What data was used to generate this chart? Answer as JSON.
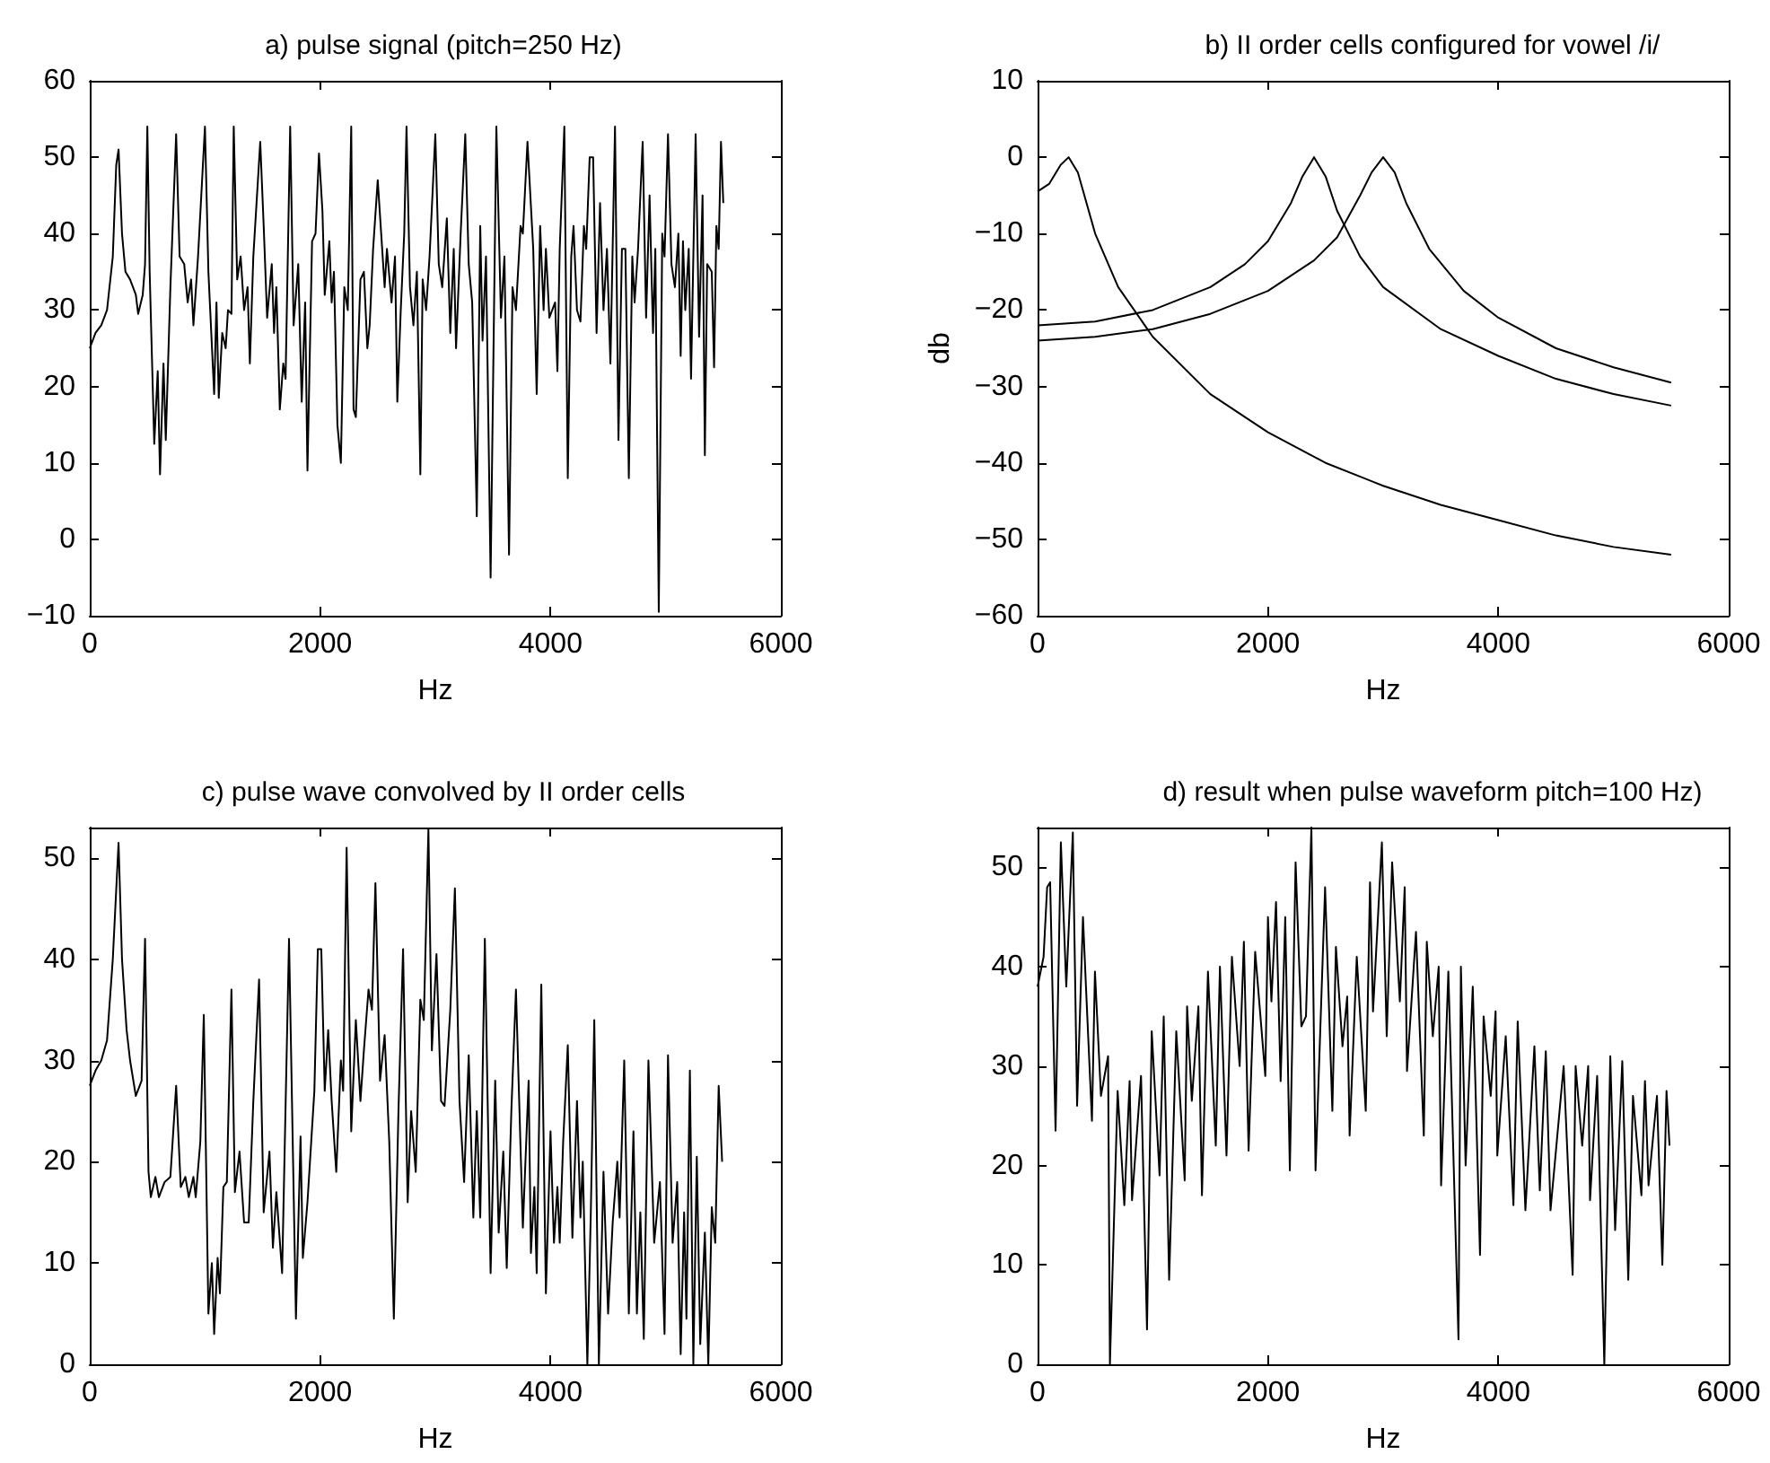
{
  "chart_data": [
    {
      "type": "line",
      "title": "a) pulse signal (pitch=250 Hz)",
      "xlabel": "Hz",
      "xlim": [
        0,
        6000
      ],
      "xticks": [
        0,
        2000,
        4000,
        6000
      ],
      "ylim": [
        -10,
        60
      ],
      "yticks": [
        -10,
        0,
        10,
        20,
        30,
        40,
        50,
        60
      ],
      "series": [
        {
          "color": "#000000",
          "x": [
            0,
            50,
            100,
            150,
            200,
            230,
            250,
            280,
            310,
            350,
            400,
            420,
            460,
            480,
            500,
            520,
            560,
            590,
            610,
            640,
            660,
            700,
            750,
            780,
            820,
            850,
            880,
            900,
            940,
            1000,
            1030,
            1080,
            1100,
            1120,
            1150,
            1180,
            1200,
            1230,
            1250,
            1280,
            1310,
            1340,
            1370,
            1390,
            1420,
            1480,
            1510,
            1540,
            1580,
            1600,
            1620,
            1650,
            1680,
            1700,
            1740,
            1770,
            1810,
            1840,
            1870,
            1890,
            1930,
            1960,
            1990,
            2020,
            2040,
            2080,
            2100,
            2120,
            2150,
            2180,
            2210,
            2240,
            2270,
            2290,
            2310,
            2350,
            2380,
            2410,
            2430,
            2460,
            2500,
            2530,
            2560,
            2580,
            2620,
            2650,
            2670,
            2700,
            2730,
            2750,
            2780,
            2810,
            2840,
            2870,
            2890,
            2920,
            2950,
            3000,
            3030,
            3060,
            3100,
            3130,
            3160,
            3180,
            3220,
            3260,
            3290,
            3320,
            3360,
            3390,
            3410,
            3440,
            3480,
            3530,
            3570,
            3600,
            3640,
            3670,
            3700,
            3740,
            3760,
            3800,
            3850,
            3880,
            3910,
            3940,
            3960,
            3990,
            4040,
            4060,
            4080,
            4120,
            4150,
            4180,
            4200,
            4230,
            4260,
            4290,
            4310,
            4340,
            4370,
            4400,
            4430,
            4460,
            4490,
            4520,
            4560,
            4590,
            4620,
            4650,
            4680,
            4710,
            4730,
            4760,
            4800,
            4830,
            4860,
            4890,
            4910,
            4940,
            4970,
            4990,
            5020,
            5050,
            5080,
            5110,
            5130,
            5150,
            5170,
            5200,
            5220,
            5260,
            5290,
            5320,
            5340,
            5360,
            5400,
            5420,
            5440,
            5460,
            5480,
            5500
          ],
          "values": [
            25,
            27,
            28,
            30,
            37,
            49,
            51,
            40,
            35,
            34,
            32,
            29.5,
            32,
            36,
            54,
            35,
            12.5,
            22,
            8.5,
            23,
            13,
            33,
            53,
            37,
            36,
            31,
            34,
            28,
            37,
            54,
            35,
            19,
            31,
            18.5,
            27,
            25,
            30,
            29.5,
            54,
            34,
            37,
            30,
            33,
            23,
            37,
            52,
            41,
            29,
            36,
            27,
            33,
            17,
            23,
            21,
            54,
            28,
            36,
            18,
            31,
            9,
            39,
            40,
            50.5,
            43,
            32,
            39,
            31,
            35,
            15,
            10,
            33,
            30,
            54,
            17,
            16,
            34,
            35,
            25,
            28,
            38,
            47,
            40,
            33,
            38,
            31,
            37,
            18,
            30,
            40,
            54,
            33,
            28,
            35,
            8.5,
            34,
            30,
            37,
            53,
            36,
            33,
            42,
            27,
            38,
            25,
            40,
            53,
            36,
            31,
            3,
            41,
            26,
            37,
            -5,
            54,
            29,
            37,
            -2,
            33,
            30,
            41,
            40,
            52,
            38,
            19,
            41,
            30,
            38,
            29,
            31,
            22,
            38,
            54,
            8,
            37,
            41,
            30,
            28.5,
            41,
            38,
            50,
            50,
            27,
            44,
            30,
            38,
            23,
            54,
            13,
            38,
            38,
            8,
            37,
            31,
            38,
            52,
            29,
            45,
            27,
            38,
            -9.5,
            40,
            37,
            53,
            36,
            33,
            40,
            24,
            39,
            30,
            38,
            21,
            53,
            26.5,
            45,
            11,
            36,
            35,
            22.5,
            41,
            38,
            52,
            44
          ]
        }
      ]
    },
    {
      "type": "line",
      "title": "b) II order cells configured for vowel /i/",
      "xlabel": "Hz",
      "ylabel": "db",
      "xlim": [
        0,
        6000
      ],
      "xticks": [
        0,
        2000,
        4000,
        6000
      ],
      "ylim": [
        -60,
        10
      ],
      "yticks": [
        -60,
        -50,
        -40,
        -30,
        -20,
        -10,
        0,
        10
      ],
      "series": [
        {
          "color": "#000000",
          "x": [
            0,
            100,
            200,
            270,
            350,
            500,
            700,
            1000,
            1500,
            2000,
            2500,
            3000,
            3500,
            4000,
            4500,
            5000,
            5500
          ],
          "values": [
            -4.5,
            -3.5,
            -1,
            0,
            -2,
            -10,
            -17,
            -23.5,
            -31,
            -36,
            -40,
            -43,
            -45.5,
            -47.5,
            -49.5,
            -51,
            -52
          ]
        },
        {
          "color": "#000000",
          "x": [
            0,
            500,
            1000,
            1500,
            1800,
            2000,
            2200,
            2300,
            2400,
            2500,
            2600,
            2800,
            3000,
            3500,
            4000,
            4500,
            5000,
            5500
          ],
          "values": [
            -22,
            -21.5,
            -20,
            -17,
            -14,
            -11,
            -6,
            -2.5,
            0,
            -2.5,
            -7,
            -13,
            -17,
            -22.5,
            -26,
            -29,
            -31,
            -32.5
          ]
        },
        {
          "color": "#000000",
          "x": [
            0,
            500,
            1000,
            1500,
            2000,
            2400,
            2600,
            2800,
            2900,
            3000,
            3100,
            3200,
            3400,
            3700,
            4000,
            4500,
            5000,
            5500
          ],
          "values": [
            -24,
            -23.5,
            -22.5,
            -20.5,
            -17.5,
            -13.5,
            -10.5,
            -5,
            -2,
            0,
            -2,
            -6,
            -12,
            -17.5,
            -21,
            -25,
            -27.5,
            -29.5
          ]
        }
      ]
    },
    {
      "type": "line",
      "title": "c) pulse wave convolved by II order cells",
      "xlabel": "Hz",
      "xlim": [
        0,
        6000
      ],
      "xticks": [
        0,
        2000,
        4000,
        6000
      ],
      "ylim": [
        0,
        53
      ],
      "yticks": [
        0,
        10,
        20,
        30,
        40,
        50
      ],
      "series": [
        {
          "color": "#000000",
          "x": [
            0,
            50,
            100,
            150,
            200,
            250,
            280,
            320,
            350,
            400,
            450,
            480,
            510,
            530,
            570,
            600,
            650,
            700,
            750,
            790,
            830,
            860,
            900,
            920,
            960,
            990,
            1030,
            1060,
            1080,
            1110,
            1130,
            1160,
            1190,
            1230,
            1260,
            1300,
            1340,
            1380,
            1420,
            1470,
            1510,
            1560,
            1590,
            1620,
            1670,
            1730,
            1790,
            1830,
            1850,
            1890,
            1950,
            1980,
            2010,
            2040,
            2070,
            2100,
            2140,
            2180,
            2200,
            2230,
            2270,
            2310,
            2350,
            2380,
            2420,
            2450,
            2480,
            2520,
            2560,
            2600,
            2640,
            2680,
            2720,
            2760,
            2790,
            2830,
            2870,
            2900,
            2940,
            2970,
            3010,
            3050,
            3080,
            3130,
            3170,
            3210,
            3250,
            3290,
            3330,
            3360,
            3390,
            3430,
            3480,
            3520,
            3550,
            3590,
            3620,
            3660,
            3700,
            3760,
            3810,
            3830,
            3860,
            3880,
            3920,
            3960,
            4000,
            4030,
            4060,
            4080,
            4110,
            4150,
            4190,
            4230,
            4260,
            4280,
            4320,
            4350,
            4380,
            4420,
            4460,
            4500,
            4540,
            4580,
            4600,
            4640,
            4680,
            4720,
            4750,
            4780,
            4810,
            4850,
            4900,
            4950,
            4990,
            5020,
            5060,
            5100,
            5130,
            5160,
            5180,
            5210,
            5240,
            5270,
            5300,
            5340,
            5370,
            5400,
            5430,
            5460,
            5490
          ],
          "values": [
            27.5,
            29,
            30,
            32,
            40,
            51.5,
            40,
            33,
            30,
            26.5,
            28,
            42,
            19,
            16.5,
            18.5,
            16.5,
            18,
            18.5,
            27.5,
            17.5,
            18.5,
            16.5,
            18.5,
            16.5,
            22,
            34.5,
            5,
            10,
            3,
            10.5,
            7,
            17.5,
            18,
            37,
            17,
            21,
            14,
            14,
            26,
            38,
            15,
            21,
            11.5,
            17,
            9,
            42,
            4.5,
            22.5,
            10.5,
            16,
            27,
            41,
            41,
            27,
            33,
            26,
            19,
            30,
            27,
            51,
            23,
            34,
            26,
            31,
            37,
            35,
            47.5,
            28,
            32.5,
            22,
            4.5,
            25,
            41,
            16,
            25,
            19,
            36,
            34,
            52.8,
            31,
            40.5,
            26,
            25.5,
            35,
            47,
            26,
            18,
            30.5,
            14.5,
            25,
            14.5,
            42,
            9,
            28,
            13,
            21,
            9.5,
            25,
            37,
            13.5,
            28,
            11,
            17.5,
            9,
            37.5,
            7,
            23,
            12,
            17.5,
            12,
            22,
            31.5,
            12.5,
            26,
            14.5,
            20,
            0,
            15,
            34,
            0,
            19,
            5,
            14,
            20,
            14.5,
            30,
            5,
            23,
            5,
            15,
            2.5,
            30,
            12,
            18,
            3,
            30.5,
            12,
            18,
            1,
            15,
            4.5,
            29,
            0,
            20.5,
            2,
            13,
            0,
            15.5,
            12,
            27.5,
            20
          ]
        }
      ]
    },
    {
      "type": "line",
      "title": "d) result when pulse waveform pitch=100 Hz)",
      "xlabel": "Hz",
      "xlim": [
        0,
        6000
      ],
      "xticks": [
        0,
        2000,
        4000,
        6000
      ],
      "ylim": [
        0,
        54
      ],
      "yticks": [
        0,
        10,
        20,
        30,
        40,
        50
      ],
      "series": [
        {
          "color": "#000000",
          "x": [
            0,
            52,
            83,
            109,
            156,
            202,
            249,
            306,
            343,
            394,
            420,
            472,
            498,
            550,
            612,
            628,
            695,
            753,
            799,
            820,
            898,
            950,
            991,
            1059,
            1095,
            1142,
            1204,
            1277,
            1298,
            1339,
            1396,
            1427,
            1479,
            1547,
            1583,
            1640,
            1687,
            1754,
            1791,
            1832,
            1889,
            1977,
            2000,
            2030,
            2070,
            2110,
            2150,
            2190,
            2240,
            2290,
            2330,
            2377,
            2413,
            2496,
            2559,
            2590,
            2647,
            2688,
            2709,
            2771,
            2849,
            2886,
            2912,
            2989,
            3031,
            3078,
            3145,
            3187,
            3207,
            3285,
            3353,
            3379,
            3431,
            3482,
            3503,
            3566,
            3654,
            3675,
            3716,
            3778,
            3841,
            3872,
            3934,
            3976,
            3991,
            4064,
            4131,
            4168,
            4235,
            4313,
            4360,
            4412,
            4453,
            4567,
            4645,
            4671,
            4728,
            4780,
            4796,
            4858,
            4920,
            4972,
            5014,
            5076,
            5128,
            5169,
            5242,
            5273,
            5304,
            5377,
            5424,
            5460,
            5486
          ],
          "values": [
            38,
            41,
            48,
            48.5,
            23.5,
            52.5,
            38,
            53.5,
            26,
            45,
            38,
            24.5,
            39.5,
            27,
            31,
            0,
            27.5,
            16,
            28.5,
            16.5,
            29,
            3.5,
            33.5,
            19,
            35,
            8.5,
            33.5,
            18.5,
            36,
            26.5,
            36,
            17,
            39.5,
            22,
            40,
            21,
            41,
            30,
            42.5,
            21.5,
            41.5,
            29,
            45,
            36.5,
            46.5,
            28.5,
            45,
            19.5,
            50.5,
            34,
            35,
            54,
            19.5,
            48,
            25.5,
            42,
            32,
            37,
            23,
            41,
            25.5,
            48.5,
            35.5,
            52.5,
            33,
            50.5,
            36.5,
            48,
            29.5,
            43.5,
            23,
            42.5,
            33,
            40,
            18,
            39.5,
            2.5,
            40,
            20,
            38,
            11,
            35,
            27,
            35.5,
            21,
            33,
            16,
            34.5,
            15.5,
            32,
            17.5,
            31.5,
            15.5,
            30,
            9,
            30,
            22,
            30,
            16.5,
            29,
            0,
            31,
            13.5,
            30.5,
            8.5,
            27,
            17,
            28.5,
            18,
            27,
            10,
            27.5,
            22
          ]
        }
      ]
    }
  ]
}
